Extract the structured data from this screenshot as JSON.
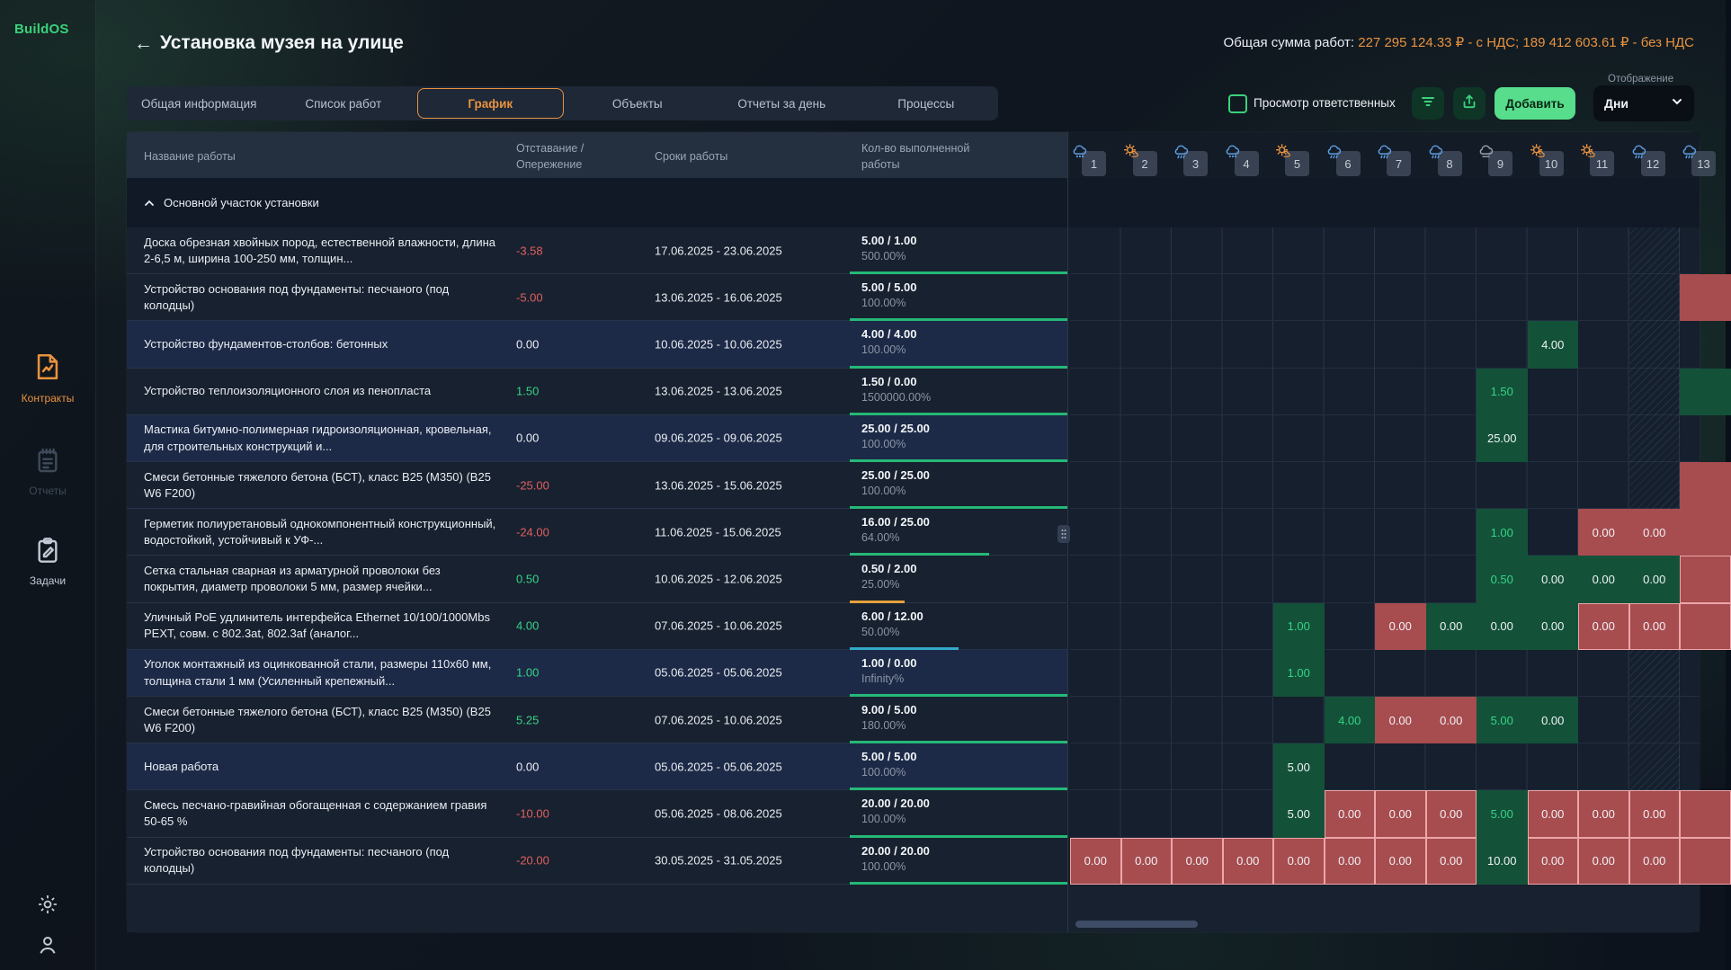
{
  "app": {
    "brand": "BuildOS"
  },
  "colors": {
    "brand": "#3ad17c",
    "orange": "#e8923f",
    "green_text": "#35d487",
    "red_text": "#e0605f",
    "white_text": "#eef1f5",
    "cell_green": "#135239",
    "cell_red": "#a74c4f",
    "cell_red_border": "#eda6a9",
    "bar_green": "#25b877",
    "bar_orange": "#e5a23c",
    "bar_cyan": "#34aacb"
  },
  "sidebar": {
    "items": [
      {
        "label": "Контракты",
        "icon": "contracts-icon",
        "state": "active"
      },
      {
        "label": "Отчеты",
        "icon": "reports-icon",
        "state": "disabled"
      },
      {
        "label": "Задачи",
        "icon": "tasks-icon",
        "state": "normal"
      }
    ],
    "bottom_icons": [
      "gear-icon",
      "user-icon"
    ]
  },
  "header": {
    "title": "Установка музея на улице",
    "back_arrow": "←",
    "total_label": "Общая сумма работ:",
    "total_value": "227 295 124.33 ₽ - с НДС; 189 412 603.61 ₽ - без НДС"
  },
  "tabs": {
    "items": [
      "Общая информация",
      "Список работ",
      "График",
      "Объекты",
      "Отчеты за день",
      "Процессы"
    ],
    "active": "График"
  },
  "controls": {
    "checkbox_label": "Просмотр ответственных",
    "checkbox_checked": false,
    "filter_icon": "filter-icon",
    "export_icon": "export-icon",
    "add_label": "Добавить",
    "display_label": "Отображение",
    "display_value": "Дни"
  },
  "table": {
    "columns": [
      {
        "lines": [
          "Название работы"
        ]
      },
      {
        "lines": [
          "Отставание /",
          "Опережение"
        ]
      },
      {
        "lines": [
          "Сроки работы"
        ]
      },
      {
        "lines": [
          "Кол-во выполненной",
          "работы"
        ]
      }
    ],
    "group_label": "Основной участок установки",
    "days": [
      {
        "num": 1,
        "weather": "snow"
      },
      {
        "num": 2,
        "weather": "psun"
      },
      {
        "num": 3,
        "weather": "rain"
      },
      {
        "num": 4,
        "weather": "snow"
      },
      {
        "num": 5,
        "weather": "psun"
      },
      {
        "num": 6,
        "weather": "rain"
      },
      {
        "num": 7,
        "weather": "rain"
      },
      {
        "num": 8,
        "weather": "rain"
      },
      {
        "num": 9,
        "weather": "cloud"
      },
      {
        "num": 10,
        "weather": "psun"
      },
      {
        "num": 11,
        "weather": "psun"
      },
      {
        "num": 12,
        "weather": "rain"
      },
      {
        "num": 13,
        "weather": "rain"
      }
    ],
    "hatched_day": 12,
    "rows": [
      {
        "name": "Доска обрезная хвойных пород, естественной влажности, длина 2-6,5 м, ширина 100-250 мм, толщин...",
        "lag": "-3.58",
        "lag_color": "red",
        "dates": "17.06.2025 - 23.06.2025",
        "qty": "5.00 / 1.00",
        "pct": "500.00%",
        "bar": {
          "w": 100,
          "color": "green"
        },
        "highlight": false,
        "cells": []
      },
      {
        "name": "Устройство основания под фундаменты: песчаного (под колодцы)",
        "lag": "-5.00",
        "lag_color": "red",
        "dates": "13.06.2025 - 16.06.2025",
        "qty": "5.00 / 5.00",
        "pct": "100.00%",
        "bar": {
          "w": 100,
          "color": "green"
        },
        "highlight": false,
        "cells": [
          {
            "d": 13,
            "v": "",
            "bg": "red"
          }
        ]
      },
      {
        "name": "Устройство фундаментов-столбов: бетонных",
        "lag": "0.00",
        "lag_color": "white",
        "dates": "10.06.2025 - 10.06.2025",
        "qty": "4.00 / 4.00",
        "pct": "100.00%",
        "bar": {
          "w": 100,
          "color": "green"
        },
        "highlight": true,
        "cells": [
          {
            "d": 10,
            "v": "4.00",
            "bg": "green",
            "t": "white"
          }
        ]
      },
      {
        "name": "Устройство теплоизоляционного слоя из пенопласта",
        "lag": "1.50",
        "lag_color": "green",
        "dates": "13.06.2025 - 13.06.2025",
        "qty": "1.50 / 0.00",
        "pct": "1500000.00%",
        "bar": {
          "w": 100,
          "color": "green"
        },
        "highlight": false,
        "cells": [
          {
            "d": 9,
            "v": "1.50",
            "bg": "green",
            "t": "green"
          },
          {
            "d": 13,
            "v": "",
            "bg": "green"
          }
        ]
      },
      {
        "name": "Мастика битумно-полимерная гидроизоляционная, кровельная, для строительных конструкций и...",
        "lag": "0.00",
        "lag_color": "white",
        "dates": "09.06.2025 - 09.06.2025",
        "qty": "25.00 / 25.00",
        "pct": "100.00%",
        "bar": {
          "w": 100,
          "color": "green"
        },
        "highlight": true,
        "cells": [
          {
            "d": 9,
            "v": "25.00",
            "bg": "green",
            "t": "white"
          }
        ]
      },
      {
        "name": "Смеси бетонные тяжелого бетона (БСТ), класс B25 (М350) (B25 W6 F200)",
        "lag": "-25.00",
        "lag_color": "red",
        "dates": "13.06.2025 - 15.06.2025",
        "qty": "25.00 / 25.00",
        "pct": "100.00%",
        "bar": {
          "w": 100,
          "color": "green"
        },
        "highlight": false,
        "cells": [
          {
            "d": 13,
            "v": "",
            "bg": "red"
          }
        ]
      },
      {
        "name": "Герметик полиуретановый однокомпонентный конструкционный, водостойкий, устойчивый к УФ-...",
        "lag": "-24.00",
        "lag_color": "red",
        "dates": "11.06.2025 - 15.06.2025",
        "qty": "16.00 / 25.00",
        "pct": "64.00%",
        "bar": {
          "w": 64,
          "color": "green"
        },
        "highlight": false,
        "cells": [
          {
            "d": 9,
            "v": "1.00",
            "bg": "green",
            "t": "green"
          },
          {
            "d": 11,
            "v": "0.00",
            "bg": "red",
            "t": "white"
          },
          {
            "d": 12,
            "v": "0.00",
            "bg": "red",
            "t": "white"
          },
          {
            "d": 13,
            "v": "",
            "bg": "red"
          }
        ]
      },
      {
        "name": "Сетка стальная сварная из арматурной проволоки без покрытия, диаметр проволоки 5 мм, размер ячейки...",
        "lag": "0.50",
        "lag_color": "green",
        "dates": "10.06.2025 - 12.06.2025",
        "qty": "0.50 / 2.00",
        "pct": "25.00%",
        "bar": {
          "w": 25,
          "color": "orange"
        },
        "highlight": false,
        "cells": [
          {
            "d": 9,
            "v": "0.50",
            "bg": "green",
            "t": "green"
          },
          {
            "d": 10,
            "v": "0.00",
            "bg": "green",
            "t": "white"
          },
          {
            "d": 11,
            "v": "0.00",
            "bg": "green",
            "t": "white"
          },
          {
            "d": 12,
            "v": "0.00",
            "bg": "green",
            "t": "white"
          },
          {
            "d": 13,
            "v": "",
            "bg": "red",
            "br": true
          }
        ]
      },
      {
        "name": "Уличный PoE удлинитель интерфейса Ethernet 10/100/1000Mbs PEXT, совм. с 802.3at, 802.3af (аналог...",
        "lag": "4.00",
        "lag_color": "green",
        "dates": "07.06.2025 - 10.06.2025",
        "qty": "6.00 / 12.00",
        "pct": "50.00%",
        "bar": {
          "w": 50,
          "color": "cyan"
        },
        "highlight": false,
        "cells": [
          {
            "d": 5,
            "v": "1.00",
            "bg": "green",
            "t": "green"
          },
          {
            "d": 7,
            "v": "0.00",
            "bg": "red",
            "t": "white"
          },
          {
            "d": 8,
            "v": "0.00",
            "bg": "green",
            "t": "white"
          },
          {
            "d": 9,
            "v": "0.00",
            "bg": "green",
            "t": "white"
          },
          {
            "d": 10,
            "v": "0.00",
            "bg": "green",
            "t": "white"
          },
          {
            "d": 11,
            "v": "0.00",
            "bg": "red",
            "t": "white",
            "br": true
          },
          {
            "d": 12,
            "v": "0.00",
            "bg": "red",
            "t": "white",
            "br": true
          },
          {
            "d": 13,
            "v": "",
            "bg": "red",
            "br": true
          }
        ]
      },
      {
        "name": "Уголок монтажный из оцинкованной стали, размеры 110x60 мм, толщина стали 1 мм (Усиленный крепежный...",
        "lag": "1.00",
        "lag_color": "green",
        "dates": "05.06.2025 - 05.06.2025",
        "qty": "1.00 / 0.00",
        "pct": "Infinity%",
        "bar": {
          "w": 100,
          "color": "green"
        },
        "highlight": true,
        "cells": [
          {
            "d": 5,
            "v": "1.00",
            "bg": "green",
            "t": "green"
          }
        ]
      },
      {
        "name": "Смеси бетонные тяжелого бетона (БСТ), класс B25 (М350) (B25 W6 F200)",
        "lag": "5.25",
        "lag_color": "green",
        "dates": "07.06.2025 - 10.06.2025",
        "qty": "9.00 / 5.00",
        "pct": "180.00%",
        "bar": {
          "w": 100,
          "color": "green"
        },
        "highlight": false,
        "cells": [
          {
            "d": 6,
            "v": "4.00",
            "bg": "green",
            "t": "green"
          },
          {
            "d": 7,
            "v": "0.00",
            "bg": "red",
            "t": "white"
          },
          {
            "d": 8,
            "v": "0.00",
            "bg": "red",
            "t": "white"
          },
          {
            "d": 9,
            "v": "5.00",
            "bg": "green",
            "t": "green"
          },
          {
            "d": 10,
            "v": "0.00",
            "bg": "green",
            "t": "white"
          }
        ]
      },
      {
        "name": "Новая работа",
        "lag": "0.00",
        "lag_color": "white",
        "dates": "05.06.2025 - 05.06.2025",
        "qty": "5.00 / 5.00",
        "pct": "100.00%",
        "bar": {
          "w": 100,
          "color": "green"
        },
        "highlight": true,
        "cells": [
          {
            "d": 5,
            "v": "5.00",
            "bg": "green",
            "t": "white"
          }
        ]
      },
      {
        "name": "Смесь песчано-гравийная обогащенная с содержанием гравия 50-65 %",
        "lag": "-10.00",
        "lag_color": "red",
        "dates": "05.06.2025 - 08.06.2025",
        "qty": "20.00 / 20.00",
        "pct": "100.00%",
        "bar": {
          "w": 100,
          "color": "green"
        },
        "highlight": false,
        "cells": [
          {
            "d": 5,
            "v": "5.00",
            "bg": "green",
            "t": "white"
          },
          {
            "d": 6,
            "v": "0.00",
            "bg": "red",
            "t": "white",
            "br": true
          },
          {
            "d": 7,
            "v": "0.00",
            "bg": "red",
            "t": "white",
            "br": true
          },
          {
            "d": 8,
            "v": "0.00",
            "bg": "red",
            "t": "white",
            "br": true
          },
          {
            "d": 9,
            "v": "5.00",
            "bg": "green",
            "t": "green"
          },
          {
            "d": 10,
            "v": "0.00",
            "bg": "red",
            "t": "white",
            "br": true
          },
          {
            "d": 11,
            "v": "0.00",
            "bg": "red",
            "t": "white",
            "br": true
          },
          {
            "d": 12,
            "v": "0.00",
            "bg": "red",
            "t": "white",
            "br": true
          },
          {
            "d": 13,
            "v": "",
            "bg": "red",
            "br": true
          }
        ]
      },
      {
        "name": "Устройство основания под фундаменты: песчаного (под колодцы)",
        "lag": "-20.00",
        "lag_color": "red",
        "dates": "30.05.2025 - 31.05.2025",
        "qty": "20.00 / 20.00",
        "pct": "100.00%",
        "bar": {
          "w": 100,
          "color": "green"
        },
        "highlight": false,
        "cells": [
          {
            "d": 1,
            "v": "0.00",
            "bg": "red",
            "t": "white",
            "br": true
          },
          {
            "d": 2,
            "v": "0.00",
            "bg": "red",
            "t": "white",
            "br": true
          },
          {
            "d": 3,
            "v": "0.00",
            "bg": "red",
            "t": "white",
            "br": true
          },
          {
            "d": 4,
            "v": "0.00",
            "bg": "red",
            "t": "white",
            "br": true
          },
          {
            "d": 5,
            "v": "0.00",
            "bg": "red",
            "t": "white",
            "br": true
          },
          {
            "d": 6,
            "v": "0.00",
            "bg": "red",
            "t": "white",
            "br": true
          },
          {
            "d": 7,
            "v": "0.00",
            "bg": "red",
            "t": "white",
            "br": true
          },
          {
            "d": 8,
            "v": "0.00",
            "bg": "red",
            "t": "white",
            "br": true
          },
          {
            "d": 9,
            "v": "10.00",
            "bg": "green",
            "t": "white"
          },
          {
            "d": 10,
            "v": "0.00",
            "bg": "red",
            "t": "white",
            "br": true
          },
          {
            "d": 11,
            "v": "0.00",
            "bg": "red",
            "t": "white",
            "br": true
          },
          {
            "d": 12,
            "v": "0.00",
            "bg": "red",
            "t": "white",
            "br": true
          },
          {
            "d": 13,
            "v": "",
            "bg": "red",
            "br": true
          }
        ]
      }
    ]
  }
}
